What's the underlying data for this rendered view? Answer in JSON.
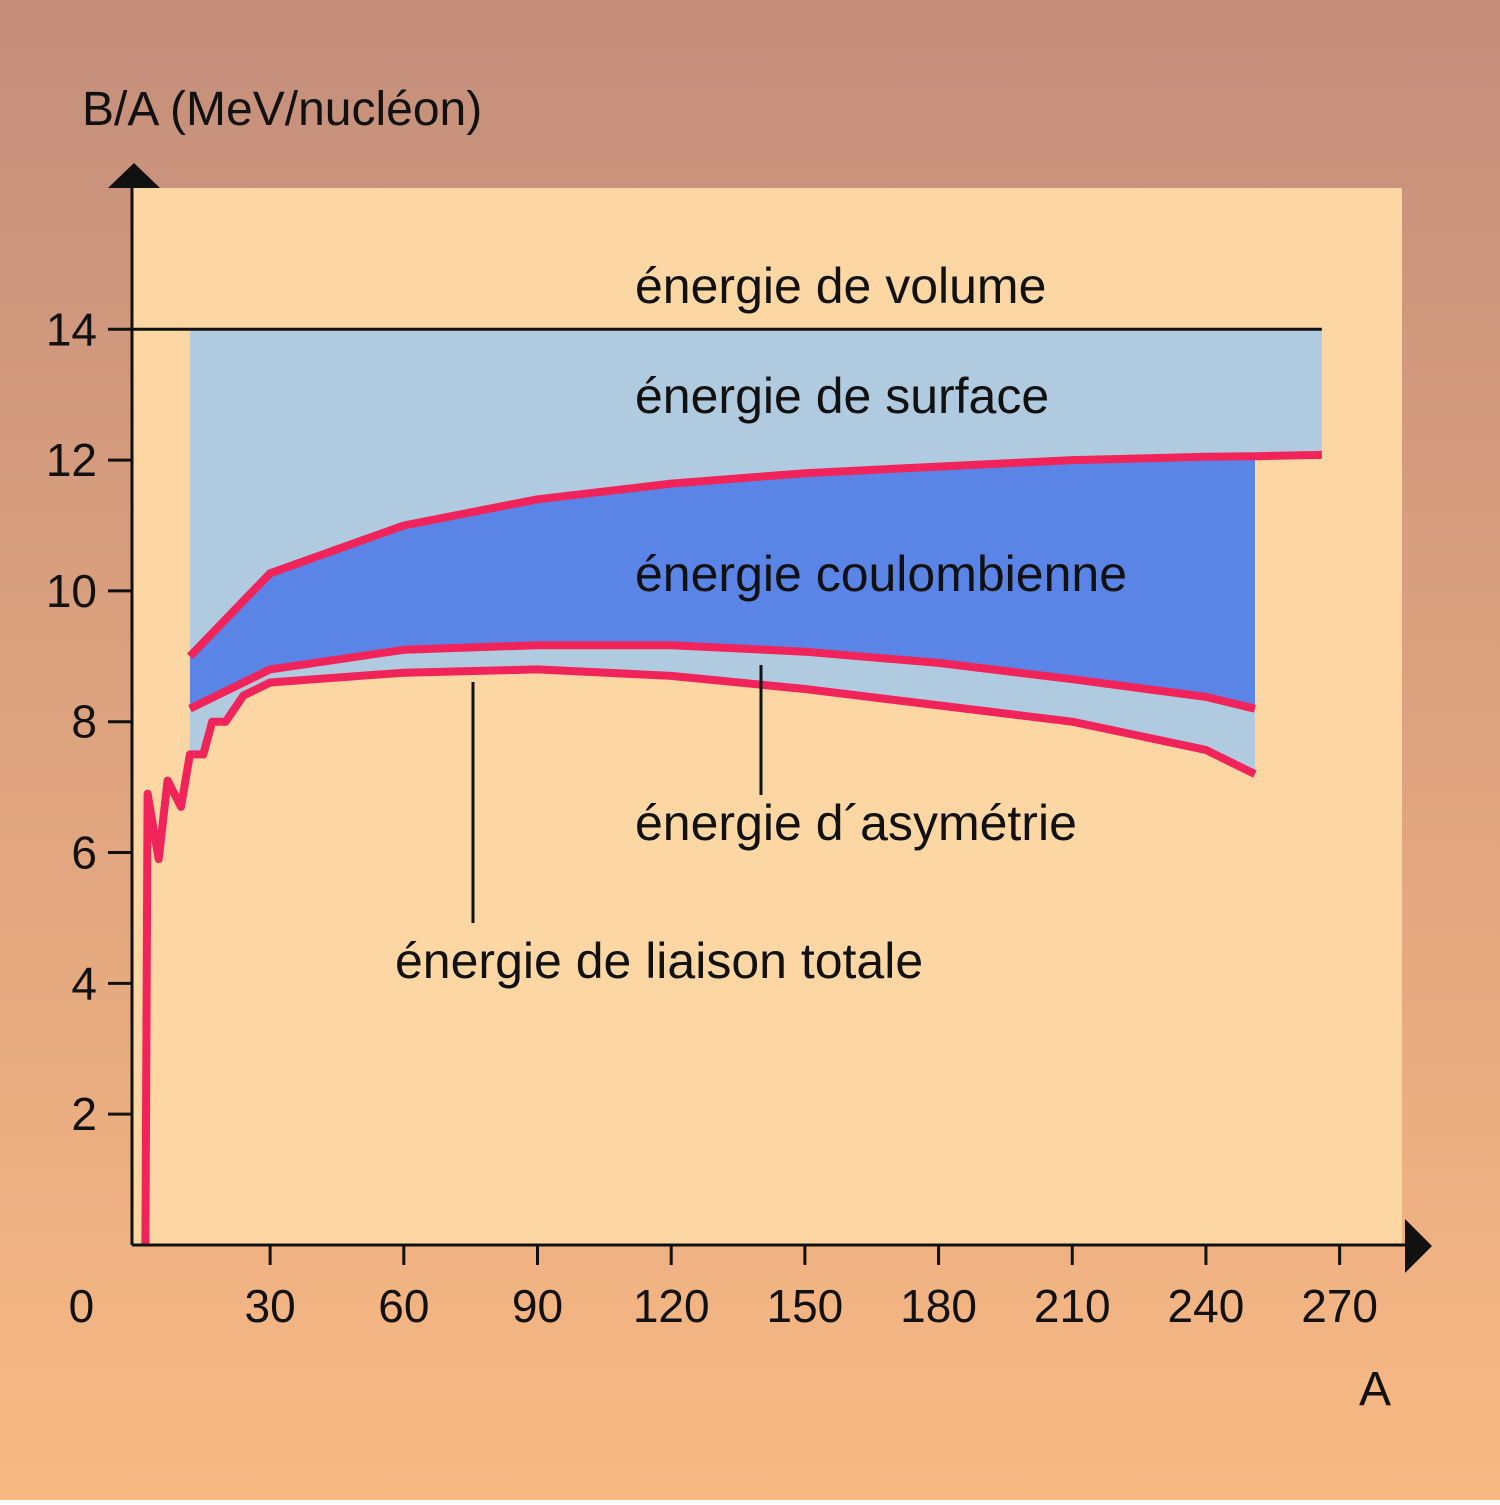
{
  "chart_data": {
    "type": "line",
    "y_label": "B/A (MeV/nucléon)",
    "x_label": "A",
    "xlim": [
      -1,
      284
    ],
    "ylim": [
      0,
      16.16
    ],
    "xticks": [
      0,
      30,
      60,
      90,
      120,
      150,
      180,
      210,
      240,
      270
    ],
    "yticks": [
      2,
      4,
      6,
      8,
      10,
      12,
      14
    ],
    "fill_colors": {
      "light": "#b0cbdf",
      "dark": "#5a85e6"
    },
    "series": [
      {
        "id": "volume",
        "color": "#111111",
        "x": [
          -1,
          266
        ],
        "values": [
          14,
          14
        ]
      },
      {
        "id": "surface",
        "color": "#f0245a",
        "x": [
          12,
          30,
          60,
          90,
          120,
          150,
          180,
          210,
          240,
          251,
          266
        ],
        "values": [
          9.0,
          10.27,
          11.0,
          11.4,
          11.64,
          11.8,
          11.9,
          12.0,
          12.05,
          12.06,
          12.08
        ]
      },
      {
        "id": "coulomb",
        "color": "#f0245a",
        "x": [
          12,
          30,
          60,
          90,
          120,
          150,
          180,
          210,
          240,
          251
        ],
        "values": [
          8.2,
          8.8,
          9.1,
          9.17,
          9.17,
          9.07,
          8.9,
          8.65,
          8.38,
          8.2
        ]
      },
      {
        "id": "total",
        "color": "#f0245a",
        "x": [
          2,
          2.5,
          5,
          7,
          10,
          12,
          15,
          17,
          20,
          24,
          30,
          60,
          90,
          120,
          150,
          180,
          210,
          240,
          251
        ],
        "values": [
          0,
          6.9,
          5.9,
          7.1,
          6.7,
          7.5,
          7.5,
          8.0,
          8.0,
          8.4,
          8.6,
          8.75,
          8.8,
          8.7,
          8.5,
          8.25,
          8.0,
          7.57,
          7.2
        ]
      }
    ],
    "annotations": [
      "énergie de volume",
      "énergie de surface",
      "énergie coulombienne",
      "énergie d´asymétrie",
      "énergie de liaison totale"
    ]
  }
}
